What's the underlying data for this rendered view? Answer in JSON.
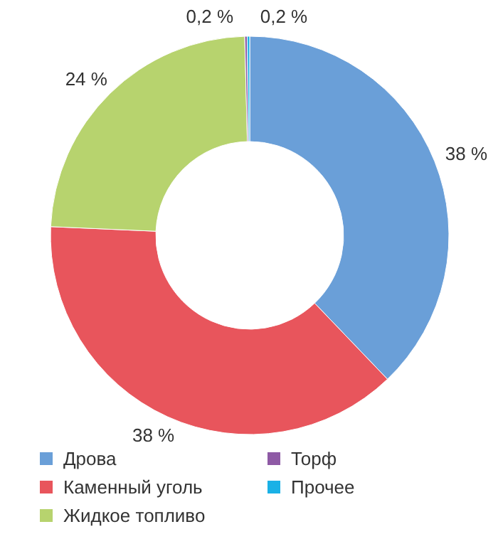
{
  "chart_data": {
    "type": "donut",
    "categories": [
      "Дрова",
      "Каменный уголь",
      "Жидкое топливо",
      "Торф",
      "Прочее"
    ],
    "values": [
      38,
      38,
      24,
      0.2,
      0.2
    ],
    "colors": [
      "#6a9fd8",
      "#e8555c",
      "#b7d36e",
      "#8e5aa5",
      "#1ab1e6"
    ],
    "value_labels": [
      "38 %",
      "38 %",
      "24 %",
      "0,2 %",
      "0,2 %"
    ],
    "legend": "bottom"
  }
}
